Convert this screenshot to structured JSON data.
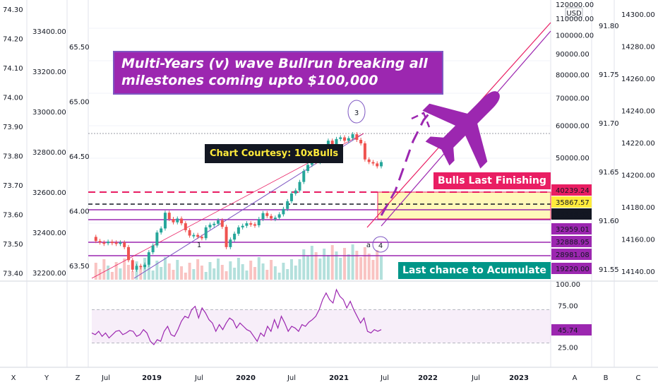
{
  "chart_data": {
    "type": "line",
    "title": "Multi-Years (v) wave Bullrun breaking all milestones coming upto $100,000",
    "annotations": {
      "courtesy": "Chart Courtesy: 10xBulls",
      "bulls_line": "Bulls Last Finishing Line",
      "accumulate": "Last chance to Acumulate",
      "wave_3": "3",
      "wave_4": "4",
      "wave_1": "1",
      "wave_a": "a"
    },
    "x_ticks": [
      "Jul",
      "2019",
      "Jul",
      "2020",
      "Jul",
      "2021",
      "Jul",
      "2022",
      "Jul",
      "2023"
    ],
    "main_axis": {
      "currency": "USD",
      "log_scale": true,
      "ticks": [
        "120000.00",
        "110000.00",
        "100000.00",
        "90000.00",
        "80000.00",
        "70000.00",
        "60000.00",
        "50000.00"
      ],
      "price_labels": [
        {
          "value": "40239.24",
          "color": "#e91e63"
        },
        {
          "value": "35867.57",
          "color": "#ffeb3b"
        },
        {
          "value": "35348.61",
          "color": "#131722"
        },
        {
          "value": "32959.01",
          "color": "#9c27b0"
        },
        {
          "value": "32888.95",
          "color": "#9c27b0"
        },
        {
          "value": "28981.08",
          "color": "#9c27b0"
        },
        {
          "value": "19220.00",
          "color": "#9c27b0"
        }
      ]
    },
    "left_axis_1": [
      "74.30",
      "74.20",
      "74.10",
      "74.00",
      "73.90",
      "73.80",
      "73.70",
      "73.60",
      "73.50",
      "73.40"
    ],
    "left_axis_2": [
      "33400.00",
      "33200.00",
      "33000.00",
      "32800.00",
      "32600.00",
      "32400.00",
      "32200.00"
    ],
    "left_axis_3": [
      "65.50",
      "65.00",
      "64.50",
      "64.00",
      "63.50"
    ],
    "right_axis_2": [
      "91.80",
      "91.75",
      "91.70",
      "91.65",
      "91.60",
      "91.55"
    ],
    "right_axis_3": [
      "14300.00",
      "14280.00",
      "14260.00",
      "14240.00",
      "14220.00",
      "14200.00",
      "14180.00",
      "14160.00",
      "14140.00"
    ],
    "rsi": {
      "ticks": [
        "100.00",
        "75.00",
        "25.00"
      ],
      "current": "45.74",
      "band_upper": 70,
      "band_lower": 30,
      "series_color": "#9c27b0",
      "values": [
        42,
        40,
        44,
        38,
        42,
        36,
        40,
        44,
        45,
        40,
        42,
        45,
        44,
        38,
        40,
        46,
        42,
        32,
        28,
        34,
        32,
        44,
        50,
        40,
        38,
        46,
        56,
        62,
        60,
        70,
        74,
        60,
        72,
        66,
        58,
        54,
        44,
        52,
        46,
        54,
        60,
        57,
        48,
        54,
        50,
        46,
        44,
        38,
        32,
        42,
        38,
        50,
        44,
        58,
        48,
        62,
        54,
        44,
        50,
        48,
        44,
        52,
        50,
        55,
        58,
        62,
        70,
        82,
        90,
        82,
        78,
        94,
        86,
        82,
        72,
        80,
        70,
        62,
        54,
        60,
        44,
        42,
        46,
        44,
        46
      ]
    },
    "price_series": [
      7200,
      6600,
      6400,
      6300,
      6500,
      6400,
      6200,
      6400,
      5800,
      4400,
      3600,
      3900,
      3800,
      4000,
      5200,
      6000,
      7900,
      8600,
      12000,
      10500,
      9800,
      10600,
      9600,
      8300,
      7400,
      7500,
      7200,
      7000,
      8800,
      9300,
      9500,
      10200,
      8900,
      5800,
      6800,
      7700,
      8800,
      9100,
      9600,
      9400,
      9200,
      10500,
      11900,
      11200,
      10600,
      10800,
      11600,
      13000,
      15300,
      18000,
      19200,
      23000,
      29000,
      33000,
      38000,
      35000,
      46000,
      48000,
      55000,
      50000,
      57000,
      59000,
      55000,
      58000,
      63000,
      56000,
      52000,
      37000,
      35000,
      34000,
      32000,
      35000
    ],
    "bottom_axis_letters": [
      "X",
      "Y",
      "Z",
      "A",
      "B",
      "C"
    ],
    "colors": {
      "purple": "#9c27b0",
      "pink": "#e91e63",
      "yellow_zone": "#fff59d",
      "teal": "#009688",
      "up": "#26a69a",
      "down": "#ef5350"
    }
  }
}
